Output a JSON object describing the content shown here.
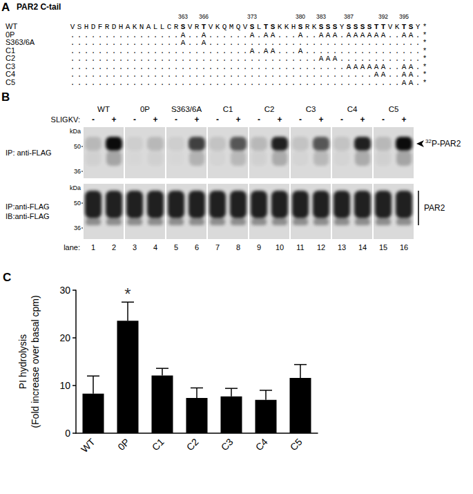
{
  "panel_a": {
    "label": "A",
    "title": "PAR2 C-tail",
    "positions": [
      363,
      366,
      373,
      380,
      383,
      387,
      392,
      395
    ],
    "rows": [
      {
        "name": "WT",
        "sequence": "VSHDFRDHAKNALLCRSVRTVKQMQVSLTSKKHSRKSSSYSSSSTTVKTSY*"
      },
      {
        "name": "0P",
        "sequence": "................A..A......A.AA...A..AAA.AAAAAA..AA.*"
      },
      {
        "name": "S363/6A",
        "sequence": "................A..A...............................*"
      },
      {
        "name": "C1",
        "sequence": "..........................A.AA...A.................*"
      },
      {
        "name": "C2",
        "sequence": "....................................AAA............*"
      },
      {
        "name": "C3",
        "sequence": "........................................AAAAAA..AA.*"
      },
      {
        "name": "C4",
        "sequence": "............................................AA..AA.*"
      },
      {
        "name": "C5",
        "sequence": "................................................AA.*"
      }
    ]
  },
  "panel_b": {
    "label": "B",
    "lane_groups": [
      "WT",
      "0P",
      "S363/6A",
      "C1",
      "C2",
      "C3",
      "C4",
      "C5"
    ],
    "treatment": "SLIGKV:",
    "treatment_states": [
      "-",
      "+"
    ],
    "lanes_label": "lane:",
    "lanes": [
      1,
      2,
      3,
      4,
      5,
      6,
      7,
      8,
      9,
      10,
      11,
      12,
      13,
      14,
      15,
      16
    ],
    "blots": [
      {
        "label_lines": [
          "IP: anti-FLAG"
        ],
        "markers_title": "kDa",
        "markers": [
          50,
          36
        ],
        "right_label": {
          "superscript": "32",
          "text": "P-PAR2"
        }
      },
      {
        "label_lines": [
          "IP:anti-FLAG",
          "IB:anti-FLAG"
        ],
        "markers_title": "kDa",
        "markers": [
          50,
          36
        ],
        "right_label": {
          "text": "PAR2"
        }
      }
    ]
  },
  "panel_c": {
    "label": "C"
  },
  "chart_data": {
    "type": "bar",
    "categories": [
      "WT",
      "0P",
      "C1",
      "C2",
      "C3",
      "C4",
      "C5"
    ],
    "values": [
      8.3,
      23.6,
      12.1,
      7.4,
      7.7,
      7.0,
      11.6
    ],
    "errors": [
      3.7,
      3.9,
      1.5,
      2.1,
      1.7,
      2.0,
      2.8
    ],
    "color": "#000000",
    "y_label": [
      "PI hydrolysis",
      "(Fold increase over basal cpm)"
    ],
    "ylim": [
      0,
      30
    ],
    "yticks": [
      0,
      10,
      20,
      30
    ],
    "grid": false,
    "annotations": [
      {
        "text": "*",
        "category": "0P"
      }
    ]
  }
}
